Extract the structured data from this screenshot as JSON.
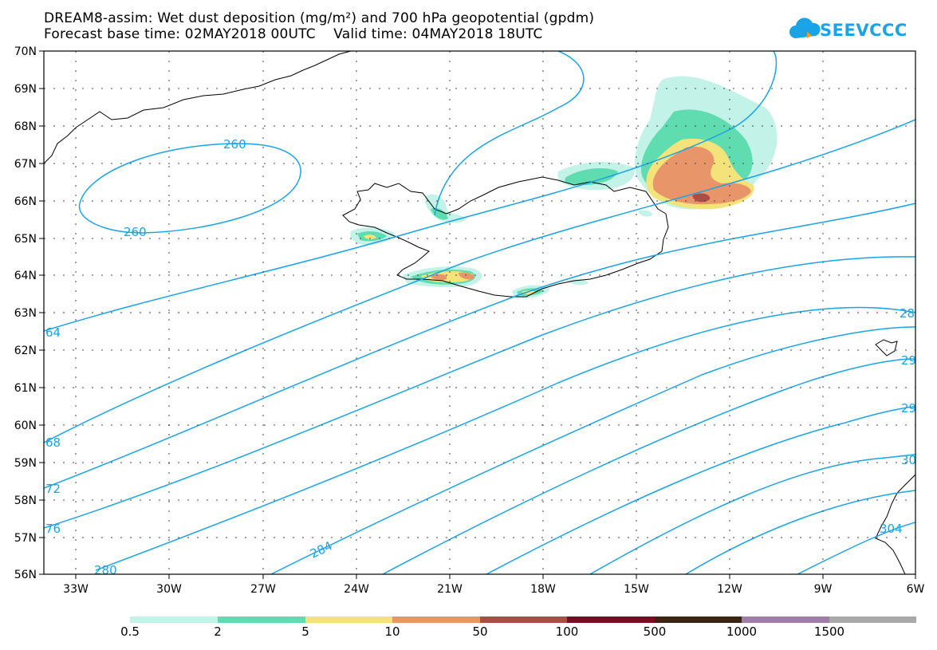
{
  "header": {
    "title_line1": "DREAM8-assim: Wet dust deposition (mg/m²) and 700 hPa geopotential (gpdm)",
    "title_line2": "Forecast base time: 02MAY2018 00UTC    Valid time: 04MAY2018 18UTC"
  },
  "logo": {
    "text": "SEEVCCC",
    "icon": "cloud-icon",
    "color": "#1aa3e6"
  },
  "map": {
    "lat_labels": [
      "70N",
      "69N",
      "68N",
      "67N",
      "66N",
      "65N",
      "64N",
      "63N",
      "62N",
      "61N",
      "60N",
      "59N",
      "58N",
      "57N",
      "56N"
    ],
    "lon_labels": [
      "33W",
      "30W",
      "27W",
      "24W",
      "21W",
      "18W",
      "15W",
      "12W",
      "9W",
      "6W"
    ],
    "contour_color": "#1aa3e6",
    "contour_labels": [
      {
        "text": "260"
      },
      {
        "text": "260"
      },
      {
        "text": "64"
      },
      {
        "text": "68"
      },
      {
        "text": "72"
      },
      {
        "text": "76"
      },
      {
        "text": "280"
      },
      {
        "text": "284"
      },
      {
        "text": "28"
      },
      {
        "text": "29"
      },
      {
        "text": "29"
      },
      {
        "text": "30"
      },
      {
        "text": "304"
      }
    ]
  },
  "colorbar": {
    "colors": [
      "#c2f2e8",
      "#5fdcb0",
      "#f4e37a",
      "#e8956a",
      "#aa4d44",
      "#7a0d22",
      "#3a2413",
      "#a07cab",
      "#a9a9a9"
    ],
    "labels": [
      "0.5",
      "2",
      "5",
      "10",
      "50",
      "100",
      "500",
      "1000",
      "1500"
    ]
  }
}
